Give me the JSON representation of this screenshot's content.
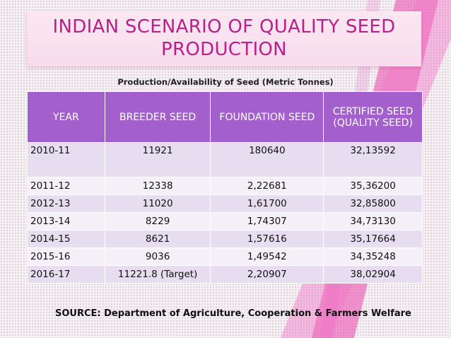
{
  "slide": {
    "title": "INDIAN SCENARIO OF QUALITY SEED PRODUCTION",
    "subtitle": "Production/Availability of Seed (Metric Tonnes)",
    "source": "SOURCE: Department of Agriculture, Cooperation & Farmers Welfare"
  },
  "table": {
    "headers": [
      "YEAR",
      "BREEDER SEED",
      "FOUNDATION SEED",
      "CERTIFIED SEED (QUALITY SEED)"
    ],
    "rows": [
      [
        "2010-11",
        "11921",
        "180640",
        "32,13592"
      ],
      [
        "2011-12",
        "12338",
        "2,22681",
        "35,36200"
      ],
      [
        "2012-13",
        "11020",
        "1,61700",
        "32,85800"
      ],
      [
        "2013-14",
        "8229",
        "1,74307",
        "34,73130"
      ],
      [
        "2014-15",
        "8621",
        "1,57616",
        "35,17664"
      ],
      [
        "2015-16",
        "9036",
        "1,49542",
        "34,35248"
      ],
      [
        "2016-17",
        "11221.8 (Target)",
        "2,20907",
        "38,02904"
      ]
    ]
  },
  "colors": {
    "title": "#b8208b",
    "header_bg": "#a35fcb",
    "row_odd": "#e6def0",
    "row_even": "#f4f0f8"
  }
}
